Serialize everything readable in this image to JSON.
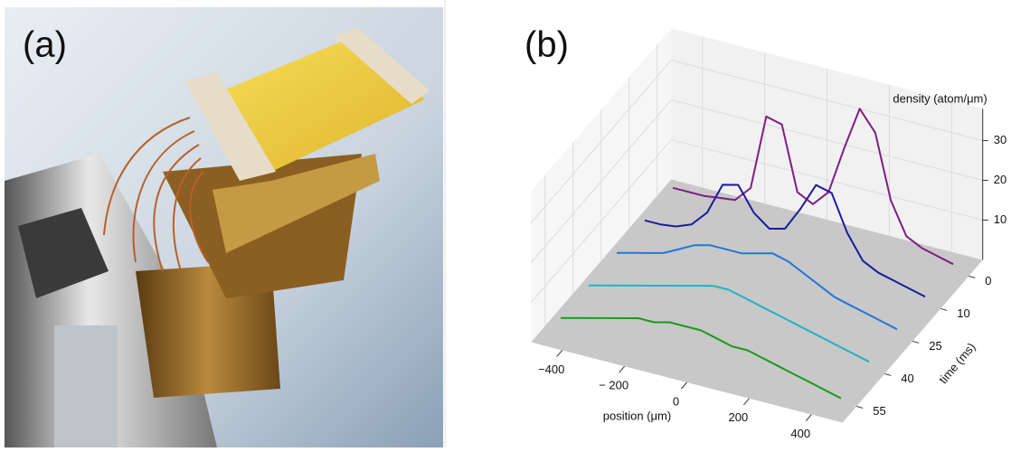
{
  "panel_a": {
    "label": "(a)"
  },
  "chart_data": {
    "type": "waterfall3d",
    "label": "(b)",
    "xlabel": "position (μm)",
    "tlabel": "time (ms)",
    "zlabel": "density (atom/μm)",
    "x": [
      -450,
      -400,
      -350,
      -300,
      -250,
      -200,
      -150,
      -100,
      -50,
      0,
      50,
      100,
      150,
      200,
      250,
      300,
      350,
      400,
      450
    ],
    "xlim": [
      -500,
      500
    ],
    "xticks": [
      {
        "value": -400,
        "label": "−400"
      },
      {
        "value": -200,
        "label": "− 200"
      },
      0,
      200,
      400
    ],
    "tticks": [
      0,
      10,
      25,
      40,
      55
    ],
    "zlim": [
      0,
      38
    ],
    "zticks": [
      10,
      20,
      30
    ],
    "series": [
      {
        "color": "#7f1d82",
        "values": [
          3,
          3,
          3,
          3.5,
          4,
          8,
          27,
          26,
          10,
          8,
          12,
          24,
          35,
          30,
          14,
          6,
          4,
          3,
          2
        ]
      },
      {
        "color": "#1c1c9c",
        "values": [
          3,
          3,
          3.5,
          5,
          9,
          17,
          18,
          12,
          9,
          10,
          16,
          23,
          22,
          13,
          7,
          5,
          4,
          3,
          2
        ]
      },
      {
        "color": "#2377d8",
        "values": [
          3,
          4,
          5,
          6,
          8,
          10,
          11,
          11,
          11,
          12,
          13,
          12,
          10,
          8,
          6,
          5,
          4,
          3,
          2
        ]
      },
      {
        "color": "#22b2c4",
        "values": [
          3,
          4,
          5,
          6,
          7,
          8,
          9,
          10,
          11,
          11,
          10,
          9,
          8,
          7,
          6,
          5,
          4,
          3,
          2
        ]
      },
      {
        "color": "#1c9a1c",
        "values": [
          3,
          4,
          5,
          6,
          7,
          8,
          8,
          9,
          9,
          9,
          8,
          7,
          7,
          6,
          5,
          4,
          3,
          2,
          1
        ]
      }
    ]
  }
}
